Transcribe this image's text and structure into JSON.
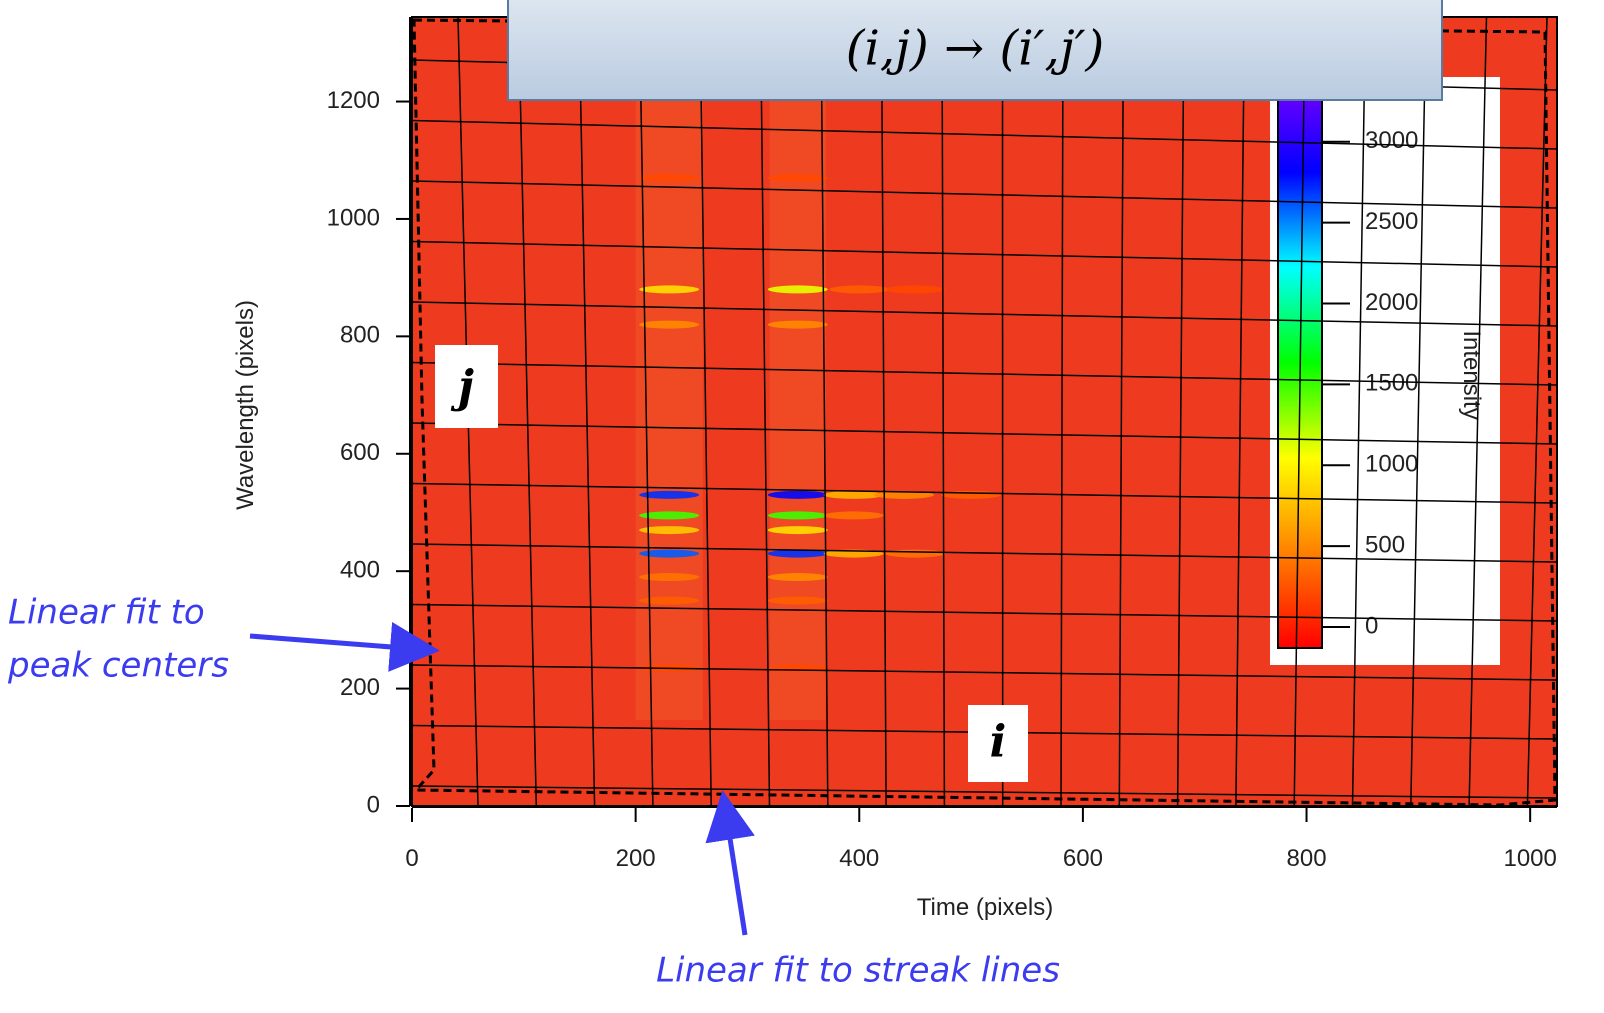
{
  "chart_data": {
    "type": "heatmap",
    "title": "(i,j) → (i′,j′)",
    "x_label": "Time (pixels)",
    "y_label": "Wavelength (pixels)",
    "xlim": [
      0,
      1024
    ],
    "ylim": [
      0,
      1344
    ],
    "xticks": [
      0,
      200,
      400,
      600,
      800,
      1000
    ],
    "yticks": [
      0,
      200,
      400,
      600,
      800,
      1000,
      1200
    ],
    "colormap": [
      "#ff0000",
      "#ff8000",
      "#ffff00",
      "#00ff00",
      "#00ffff",
      "#0000ff",
      "#8000ff"
    ],
    "colorbar": {
      "label": "Intensity",
      "lim": [
        -130,
        3400
      ],
      "ticks": [
        0,
        500,
        1000,
        1500,
        2000,
        2500,
        3000
      ]
    },
    "spots": {
      "x": [
        230,
        345,
        400,
        450,
        230,
        345,
        230,
        345,
        395,
        440,
        500,
        230,
        345,
        395,
        230,
        345,
        230,
        345,
        395,
        450,
        230,
        345,
        230,
        345,
        230,
        345,
        230,
        345
      ],
      "y": [
        880,
        880,
        880,
        880,
        820,
        820,
        530,
        530,
        530,
        530,
        530,
        495,
        495,
        495,
        470,
        470,
        430,
        430,
        430,
        430,
        390,
        390,
        350,
        350,
        235,
        235,
        1070,
        1070
      ],
      "values": [
        900,
        1100,
        300,
        200,
        500,
        500,
        2700,
        2800,
        700,
        500,
        300,
        1500,
        1500,
        400,
        800,
        900,
        2600,
        2700,
        700,
        400,
        400,
        500,
        300,
        300,
        200,
        200,
        200,
        200
      ]
    },
    "annotations": {
      "j": "j",
      "i": "i",
      "peak": [
        "Linear fit to",
        "peak centers"
      ],
      "streak": "Linear fit to streak lines"
    }
  }
}
